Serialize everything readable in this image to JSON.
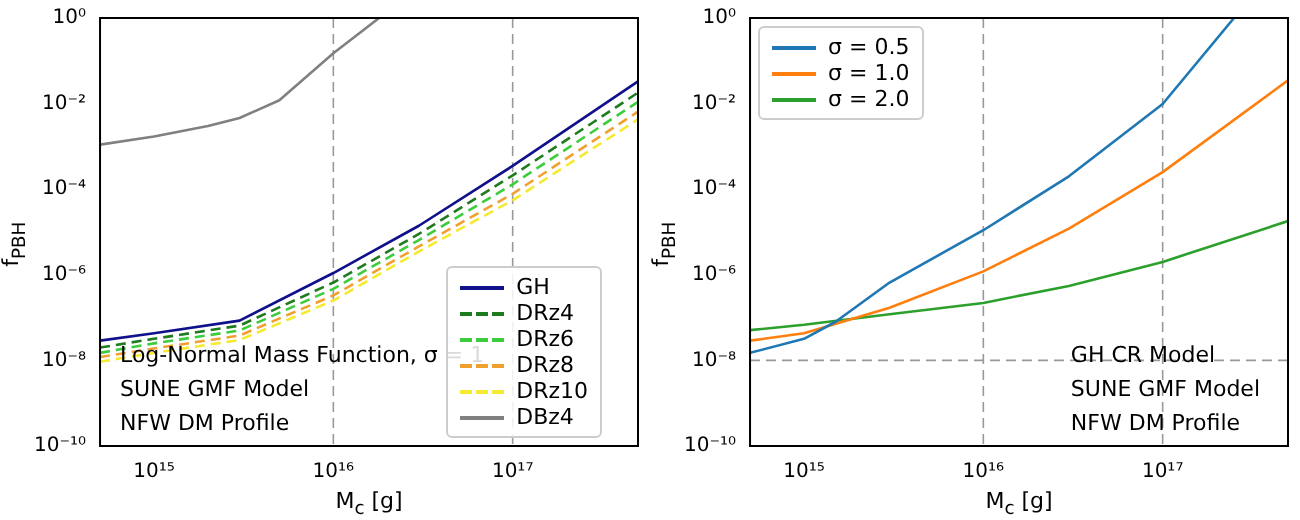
{
  "chart_data": [
    {
      "type": "line",
      "xlabel": "M$_{c}$ [g]",
      "ylabel": "f$_{PBH}$",
      "log": "xy",
      "xlim": [
        500000000000000.0,
        5e+17
      ],
      "ylim": [
        1e-10,
        1
      ],
      "xticks": [
        {
          "value": 1000000000000000.0,
          "label": "10¹⁵"
        },
        {
          "value": 1e+16,
          "label": "10¹⁶"
        },
        {
          "value": 1e+17,
          "label": "10¹⁷"
        }
      ],
      "yticks": [
        {
          "value": 1,
          "label": "10⁰"
        },
        {
          "value": 0.01,
          "label": "10⁻²"
        },
        {
          "value": 0.0001,
          "label": "10⁻⁴"
        },
        {
          "value": 1e-06,
          "label": "10⁻⁶"
        },
        {
          "value": 1e-08,
          "label": "10⁻⁸"
        },
        {
          "value": 1e-10,
          "label": "10⁻¹⁰"
        }
      ],
      "legend": "bottom right",
      "marker": "none",
      "ref_lines": [
        {
          "axis": "x",
          "value": 1e+16,
          "color": "#999999",
          "line_style": "dashed"
        },
        {
          "axis": "x",
          "value": 1e+17,
          "color": "#999999",
          "line_style": "dashed"
        }
      ],
      "annotations": [
        "Log-Normal Mass Function, σ = 1",
        "SUNE GMF Model",
        "NFW DM Profile"
      ],
      "series": [
        {
          "name": "GH",
          "color": "#10108c",
          "line_style": "solid",
          "x": [
            500000000000000.0,
            1000000000000000.0,
            3000000000000000.0,
            1e+16,
            3e+16,
            1e+17,
            5e+17
          ],
          "values": [
            2.9e-08,
            4.3e-08,
            8.5e-08,
            1.1e-06,
            1.4e-05,
            0.00035,
            0.033
          ]
        },
        {
          "name": "DRz4",
          "color": "#1e7b1e",
          "line_style": "dashed",
          "x": [
            500000000000000.0,
            1000000000000000.0,
            3000000000000000.0,
            1e+16,
            3e+16,
            1e+17,
            5e+17
          ],
          "values": [
            2e-08,
            3.2e-08,
            6.5e-08,
            6.6e-07,
            9e-06,
            0.00021,
            0.018
          ]
        },
        {
          "name": "DRz6",
          "color": "#3ccc3c",
          "line_style": "dashed",
          "x": [
            500000000000000.0,
            1000000000000000.0,
            3000000000000000.0,
            1e+16,
            3e+16,
            1e+17,
            5e+17
          ],
          "values": [
            1.5e-08,
            2.5e-08,
            5e-08,
            4.7e-07,
            6.5e-06,
            0.00013,
            0.011
          ]
        },
        {
          "name": "DRz8",
          "color": "#f0a030",
          "line_style": "dashed",
          "x": [
            500000000000000.0,
            1000000000000000.0,
            3000000000000000.0,
            1e+16,
            3e+16,
            1e+17,
            5e+17
          ],
          "values": [
            1.2e-08,
            1.9e-08,
            3.8e-08,
            3.3e-07,
            4.6e-06,
            7.8e-05,
            0.0065
          ]
        },
        {
          "name": "DRz10",
          "color": "#f5ea30",
          "line_style": "dashed",
          "x": [
            500000000000000.0,
            1000000000000000.0,
            3000000000000000.0,
            1e+16,
            3e+16,
            1e+17,
            5e+17
          ],
          "values": [
            9.3e-09,
            1.5e-08,
            3e-08,
            2.5e-07,
            3.5e-06,
            5.5e-05,
            0.0043
          ]
        },
        {
          "name": "DBz4",
          "color": "#808080",
          "line_style": "solid",
          "x": [
            500000000000000.0,
            1000000000000000.0,
            2000000000000000.0,
            3000000000000000.0,
            5000000000000000.0,
            1e+16,
            1.8e+16
          ],
          "values": [
            0.0011,
            0.0017,
            0.003,
            0.0046,
            0.012,
            0.15,
            1
          ]
        }
      ]
    },
    {
      "type": "line",
      "xlabel": "M$_{c}$ [g]",
      "ylabel": "f$_{PBH}$",
      "log": "xy",
      "xlim": [
        500000000000000.0,
        5e+17
      ],
      "ylim": [
        1e-10,
        1
      ],
      "xticks": [
        {
          "value": 1000000000000000.0,
          "label": "10¹⁵"
        },
        {
          "value": 1e+16,
          "label": "10¹⁶"
        },
        {
          "value": 1e+17,
          "label": "10¹⁷"
        }
      ],
      "yticks": [
        {
          "value": 1,
          "label": "10⁰"
        },
        {
          "value": 0.01,
          "label": "10⁻²"
        },
        {
          "value": 0.0001,
          "label": "10⁻⁴"
        },
        {
          "value": 1e-06,
          "label": "10⁻⁶"
        },
        {
          "value": 1e-08,
          "label": "10⁻⁸"
        },
        {
          "value": 1e-10,
          "label": "10⁻¹⁰"
        }
      ],
      "legend": "top left",
      "marker": "none",
      "ref_lines": [
        {
          "axis": "x",
          "value": 1e+16,
          "color": "#999999",
          "line_style": "dashed"
        },
        {
          "axis": "x",
          "value": 1e+17,
          "color": "#999999",
          "line_style": "dashed"
        },
        {
          "axis": "y",
          "value": 1e-08,
          "color": "#999999",
          "line_style": "dashed"
        }
      ],
      "annotations": [
        "GH CR Model",
        "SUNE GMF Model",
        "NFW DM Profile"
      ],
      "series": [
        {
          "name": "σ = 0.5",
          "color": "#1f77b4",
          "x": [
            500000000000000.0,
            1000000000000000.0,
            1500000000000000.0,
            3000000000000000.0,
            1e+16,
            3e+16,
            1e+17,
            2.5e+17
          ],
          "values": [
            1.5e-08,
            3.2e-08,
            8e-08,
            6.6e-07,
            1.1e-05,
            0.0002,
            0.0098,
            1
          ]
        },
        {
          "name": "σ = 1.0",
          "color": "#ff7f0e",
          "x": [
            500000000000000.0,
            1000000000000000.0,
            3000000000000000.0,
            1e+16,
            3e+16,
            1e+17,
            5e+17
          ],
          "values": [
            2.9e-08,
            4.3e-08,
            1.7e-07,
            1.2e-06,
            1.2e-05,
            0.00025,
            0.035
          ]
        },
        {
          "name": "σ = 2.0",
          "color": "#2ca02c",
          "x": [
            500000000000000.0,
            1000000000000000.0,
            3000000000000000.0,
            1e+16,
            3e+16,
            1e+17,
            5e+17
          ],
          "values": [
            5.1e-08,
            6.8e-08,
            1.2e-07,
            2.2e-07,
            5.5e-07,
            2e-06,
            1.8e-05
          ]
        }
      ]
    }
  ]
}
